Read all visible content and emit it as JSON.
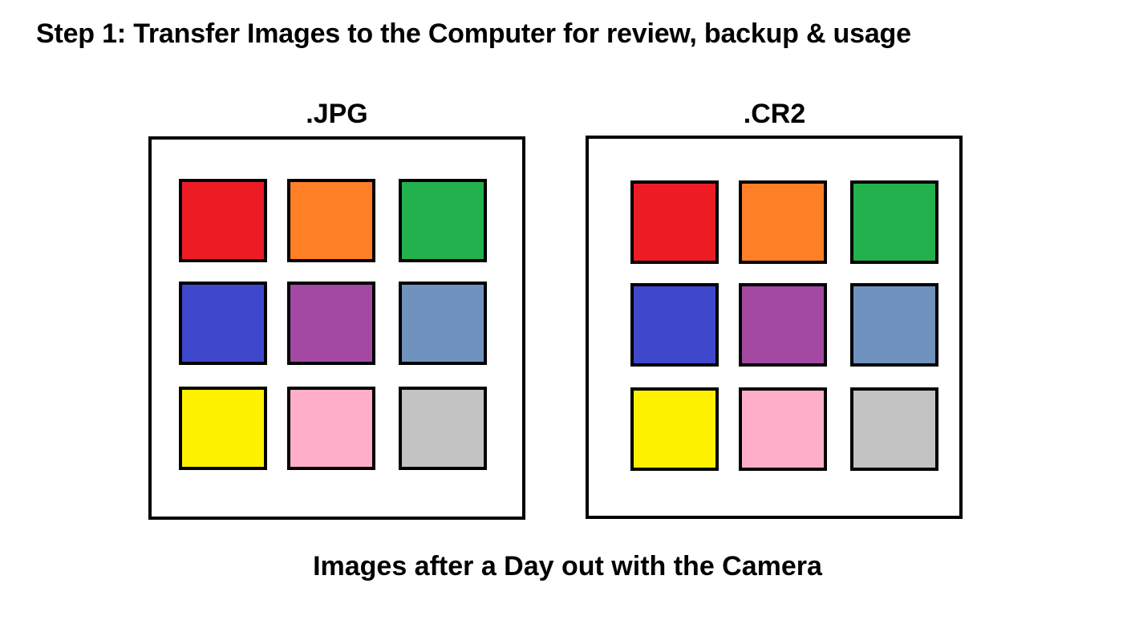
{
  "title": "Step 1: Transfer Images to the Computer for review, backup & usage",
  "caption": "Images after a Day out with the Camera",
  "groups": [
    {
      "label": ".JPG",
      "tiles": [
        {
          "color": "#ed1c24"
        },
        {
          "color": "#ff7f27"
        },
        {
          "color": "#22b14c"
        },
        {
          "color": "#3f48cc"
        },
        {
          "color": "#a349a4"
        },
        {
          "color": "#7092be"
        },
        {
          "color": "#fff200"
        },
        {
          "color": "#ffaec9"
        },
        {
          "color": "#c3c3c3"
        }
      ]
    },
    {
      "label": ".CR2",
      "tiles": [
        {
          "color": "#ed1c24"
        },
        {
          "color": "#ff7f27"
        },
        {
          "color": "#22b14c"
        },
        {
          "color": "#3f48cc"
        },
        {
          "color": "#a349a4"
        },
        {
          "color": "#7092be"
        },
        {
          "color": "#fff200"
        },
        {
          "color": "#ffaec9"
        },
        {
          "color": "#c3c3c3"
        }
      ]
    }
  ]
}
